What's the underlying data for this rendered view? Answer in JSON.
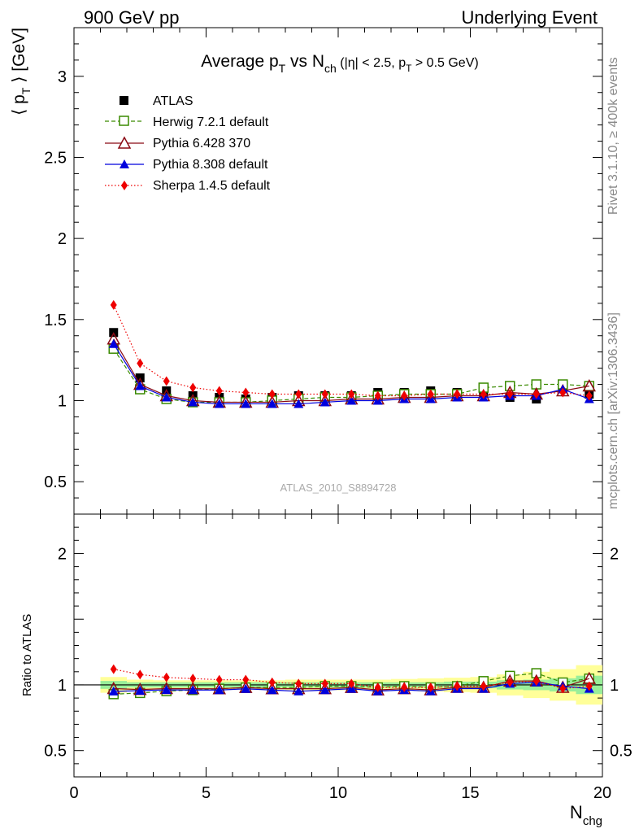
{
  "header": {
    "left": "900 GeV pp",
    "right": "Underlying Event"
  },
  "side_labels": {
    "rivet": "Rivet 3.1.10, ≥ 400k events",
    "mcplots": "mcplots.cern.ch [arXiv:1306.3436]"
  },
  "chart_data": {
    "type": "scatter",
    "title": {
      "prefix": "Average p",
      "prefix_sub": "T",
      "middle": " vs N",
      "middle_sub": "ch",
      "cut_open": " (|η| < 2.5, p",
      "cut_sub": "T",
      "cut_close": " > 0.5 GeV)"
    },
    "ylabel_main": {
      "open": "⟨ p",
      "sub": "T",
      "close": " ⟩ [GeV]"
    },
    "ylabel_ratio": "Ratio to ATLAS",
    "xlabel": {
      "main": "N",
      "sub": "chg"
    },
    "watermark": "ATLAS_2010_S8894728",
    "xlim": [
      0,
      20
    ],
    "ylim_main": [
      0.3,
      3.3
    ],
    "ylim_ratio": [
      0.3,
      2.3
    ],
    "x_ticks": [
      "0",
      "5",
      "10",
      "15",
      "20"
    ],
    "y_ticks_main": [
      "0.5",
      "1",
      "1.5",
      "2",
      "2.5",
      "3"
    ],
    "y_ticks_ratio": [
      "0.5",
      "1",
      "2"
    ],
    "x": [
      1.5,
      2.5,
      3.5,
      4.5,
      5.5,
      6.5,
      7.5,
      8.5,
      9.5,
      10.5,
      11.5,
      12.5,
      13.5,
      14.5,
      15.5,
      16.5,
      17.5,
      18.5,
      19.5
    ],
    "band_inner": [
      0.03,
      0.02,
      0.02,
      0.02,
      0.02,
      0.02,
      0.02,
      0.02,
      0.02,
      0.02,
      0.02,
      0.02,
      0.02,
      0.025,
      0.025,
      0.035,
      0.04,
      0.05,
      0.07
    ],
    "band_outer": [
      0.06,
      0.04,
      0.035,
      0.035,
      0.035,
      0.035,
      0.035,
      0.04,
      0.04,
      0.04,
      0.04,
      0.045,
      0.05,
      0.055,
      0.06,
      0.08,
      0.1,
      0.12,
      0.15
    ],
    "legend": [
      "ATLAS",
      "Herwig 7.2.1 default",
      "Pythia 6.428 370",
      "Pythia 8.308 default",
      "Sherpa 1.4.5 default"
    ],
    "series": [
      {
        "name": "ATLAS",
        "marker": "square-filled",
        "line": "none",
        "color": "#000000",
        "values": [
          1.42,
          1.14,
          1.06,
          1.03,
          1.02,
          1.01,
          1.02,
          1.03,
          1.03,
          1.03,
          1.05,
          1.05,
          1.06,
          1.05,
          1.05,
          1.02,
          1.01,
          1.08,
          1.04
        ]
      },
      {
        "name": "Herwig 7.2.1 default",
        "marker": "square-open",
        "line": "dashed",
        "color": "#3a8a00",
        "values": [
          1.32,
          1.07,
          1.01,
          0.99,
          0.99,
          0.99,
          1.0,
          1.01,
          1.02,
          1.02,
          1.03,
          1.04,
          1.04,
          1.04,
          1.08,
          1.09,
          1.1,
          1.1,
          1.09
        ]
      },
      {
        "name": "Pythia 6.428 370",
        "marker": "triangle-open",
        "line": "solid",
        "color": "#8b0a14",
        "values": [
          1.38,
          1.1,
          1.03,
          1.0,
          0.99,
          0.99,
          0.99,
          1.0,
          1.0,
          1.01,
          1.01,
          1.02,
          1.02,
          1.03,
          1.03,
          1.05,
          1.04,
          1.06,
          1.09
        ]
      },
      {
        "name": "Pythia 8.308 default",
        "marker": "triangle-filled",
        "line": "solid",
        "color": "#0000dd",
        "values": [
          1.35,
          1.09,
          1.02,
          0.99,
          0.98,
          0.98,
          0.98,
          0.98,
          0.99,
          1.0,
          1.0,
          1.01,
          1.01,
          1.02,
          1.02,
          1.03,
          1.03,
          1.07,
          1.01
        ]
      },
      {
        "name": "Sherpa 1.4.5 default",
        "marker": "diamond-filled",
        "line": "dotted",
        "color": "#ee0000",
        "values": [
          1.59,
          1.23,
          1.12,
          1.08,
          1.06,
          1.05,
          1.04,
          1.04,
          1.04,
          1.04,
          1.03,
          1.03,
          1.04,
          1.04,
          1.04,
          1.04,
          1.04,
          1.05,
          1.03
        ]
      }
    ]
  }
}
